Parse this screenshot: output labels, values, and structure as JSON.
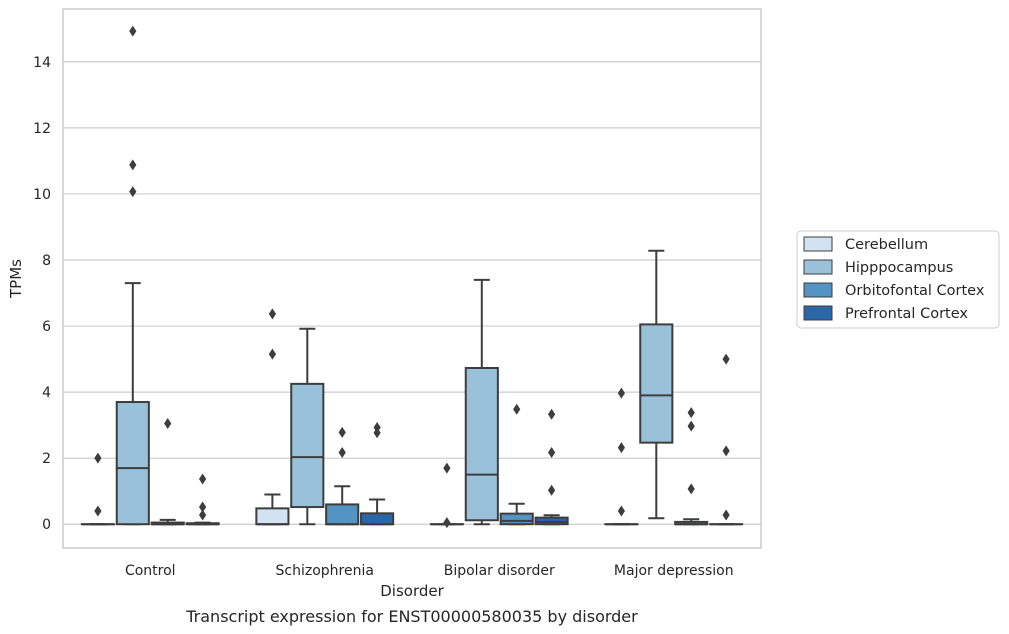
{
  "chart_data": {
    "type": "box",
    "title": "",
    "caption": "Transcript expression for ENST00000580035 by disorder",
    "xlabel": "Disorder",
    "ylabel": "TPMs",
    "ylim": [
      -0.72,
      15.6
    ],
    "yticks": [
      0,
      2,
      4,
      6,
      8,
      10,
      12,
      14
    ],
    "grid": "horizontal",
    "legend_position": "right",
    "categories": [
      "Control",
      "Schizophrenia",
      "Bipolar disorder",
      "Major depression"
    ],
    "series": [
      {
        "name": "Cerebellum",
        "color": "#d2e2f0",
        "boxes": [
          {
            "q1": 0,
            "median": 0,
            "q3": 0,
            "whislo": 0,
            "whishi": 0,
            "fliers": [
              0.4,
              2.0
            ]
          },
          {
            "q1": 0,
            "median": 0,
            "q3": 0.48,
            "whislo": 0,
            "whishi": 0.9,
            "fliers": [
              5.15,
              6.37
            ]
          },
          {
            "q1": 0,
            "median": 0,
            "q3": 0,
            "whislo": 0,
            "whishi": 0,
            "fliers": [
              0.05,
              1.7
            ]
          },
          {
            "q1": 0,
            "median": 0,
            "q3": 0,
            "whislo": 0,
            "whishi": 0,
            "fliers": [
              0.4,
              2.32,
              3.97
            ]
          }
        ]
      },
      {
        "name": "Hipppocampus",
        "color": "#9ac1da",
        "boxes": [
          {
            "q1": 0,
            "median": 1.7,
            "q3": 3.7,
            "whislo": 0,
            "whishi": 7.3,
            "fliers": [
              10.07,
              10.88,
              14.93
            ]
          },
          {
            "q1": 0.52,
            "median": 2.03,
            "q3": 4.25,
            "whislo": 0,
            "whishi": 5.92,
            "fliers": []
          },
          {
            "q1": 0.12,
            "median": 1.5,
            "q3": 4.73,
            "whislo": 0,
            "whishi": 7.4,
            "fliers": []
          },
          {
            "q1": 2.47,
            "median": 3.9,
            "q3": 6.05,
            "whislo": 0.18,
            "whishi": 8.28,
            "fliers": []
          }
        ]
      },
      {
        "name": "Orbitofontal Cortex",
        "color": "#5394c4",
        "boxes": [
          {
            "q1": 0,
            "median": 0,
            "q3": 0.05,
            "whislo": 0,
            "whishi": 0.13,
            "fliers": [
              3.05
            ]
          },
          {
            "q1": 0,
            "median": 0,
            "q3": 0.6,
            "whislo": 0,
            "whishi": 1.15,
            "fliers": [
              2.17,
              2.78
            ]
          },
          {
            "q1": 0,
            "median": 0.1,
            "q3": 0.32,
            "whislo": 0,
            "whishi": 0.62,
            "fliers": [
              3.48
            ]
          },
          {
            "q1": 0,
            "median": 0,
            "q3": 0.07,
            "whislo": 0,
            "whishi": 0.15,
            "fliers": [
              1.07,
              2.97,
              3.38
            ]
          }
        ]
      },
      {
        "name": "Prefrontal Cortex",
        "color": "#2967a7",
        "boxes": [
          {
            "q1": 0,
            "median": 0,
            "q3": 0.03,
            "whislo": 0,
            "whishi": 0.05,
            "fliers": [
              0.28,
              0.52,
              1.37
            ]
          },
          {
            "q1": 0,
            "median": 0,
            "q3": 0.33,
            "whislo": 0,
            "whishi": 0.75,
            "fliers": [
              2.77,
              2.93
            ]
          },
          {
            "q1": 0,
            "median": 0.07,
            "q3": 0.2,
            "whislo": 0,
            "whishi": 0.27,
            "fliers": [
              1.03,
              2.17,
              3.33
            ]
          },
          {
            "q1": 0,
            "median": 0,
            "q3": 0,
            "whislo": 0,
            "whishi": 0,
            "fliers": [
              0.28,
              2.22,
              5.0
            ]
          }
        ]
      }
    ]
  }
}
